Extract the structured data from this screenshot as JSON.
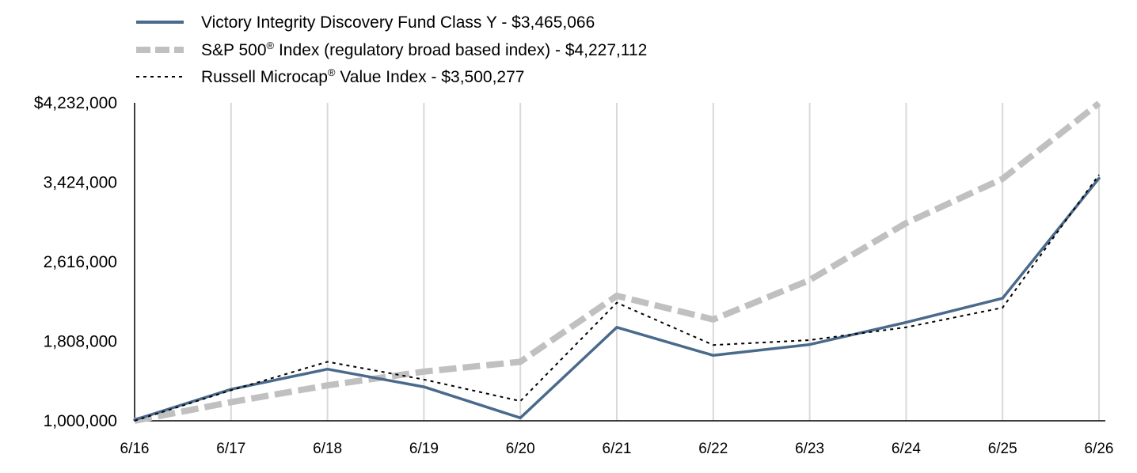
{
  "chart_data": {
    "type": "line",
    "categories": [
      "6/16",
      "6/17",
      "6/18",
      "6/19",
      "6/20",
      "6/21",
      "6/22",
      "6/23",
      "6/24",
      "6/25",
      "6/26"
    ],
    "ylim": [
      1000000,
      4232000
    ],
    "y_ticks": [
      {
        "value": 4232000,
        "label": "$4,232,000"
      },
      {
        "value": 3424000,
        "label": "3,424,000"
      },
      {
        "value": 2616000,
        "label": "2,616,000"
      },
      {
        "value": 1808000,
        "label": "1,808,000"
      },
      {
        "value": 1000000,
        "label": "1,000,000"
      }
    ],
    "grid": "vertical",
    "legend_position": "top-left",
    "series": [
      {
        "legend_main": "Victory Integrity Discovery Fund Class Y - $3,465,066",
        "legend_sup": "",
        "legend_tail": "",
        "color": "#4a6a8c",
        "style": "solid",
        "values": [
          1010000,
          1320000,
          1525000,
          1345000,
          1030000,
          1950000,
          1665000,
          1775000,
          2000000,
          2245000,
          3465066
        ]
      },
      {
        "legend_main": "S&P 500",
        "legend_sup": "®",
        "legend_tail": " Index (regulatory broad based index) - $4,227,112",
        "color": "#c0c0c0",
        "style": "thick-dashed",
        "values": [
          1000000,
          1190000,
          1360000,
          1500000,
          1600000,
          2270000,
          2030000,
          2430000,
          3010000,
          3460000,
          4227112
        ]
      },
      {
        "legend_main": "Russell Microcap",
        "legend_sup": "®",
        "legend_tail": " Value Index - $3,500,277",
        "color": "#000000",
        "style": "dotted",
        "values": [
          1000000,
          1310000,
          1600000,
          1420000,
          1200000,
          2200000,
          1770000,
          1820000,
          1950000,
          2150000,
          3500277
        ]
      }
    ]
  }
}
